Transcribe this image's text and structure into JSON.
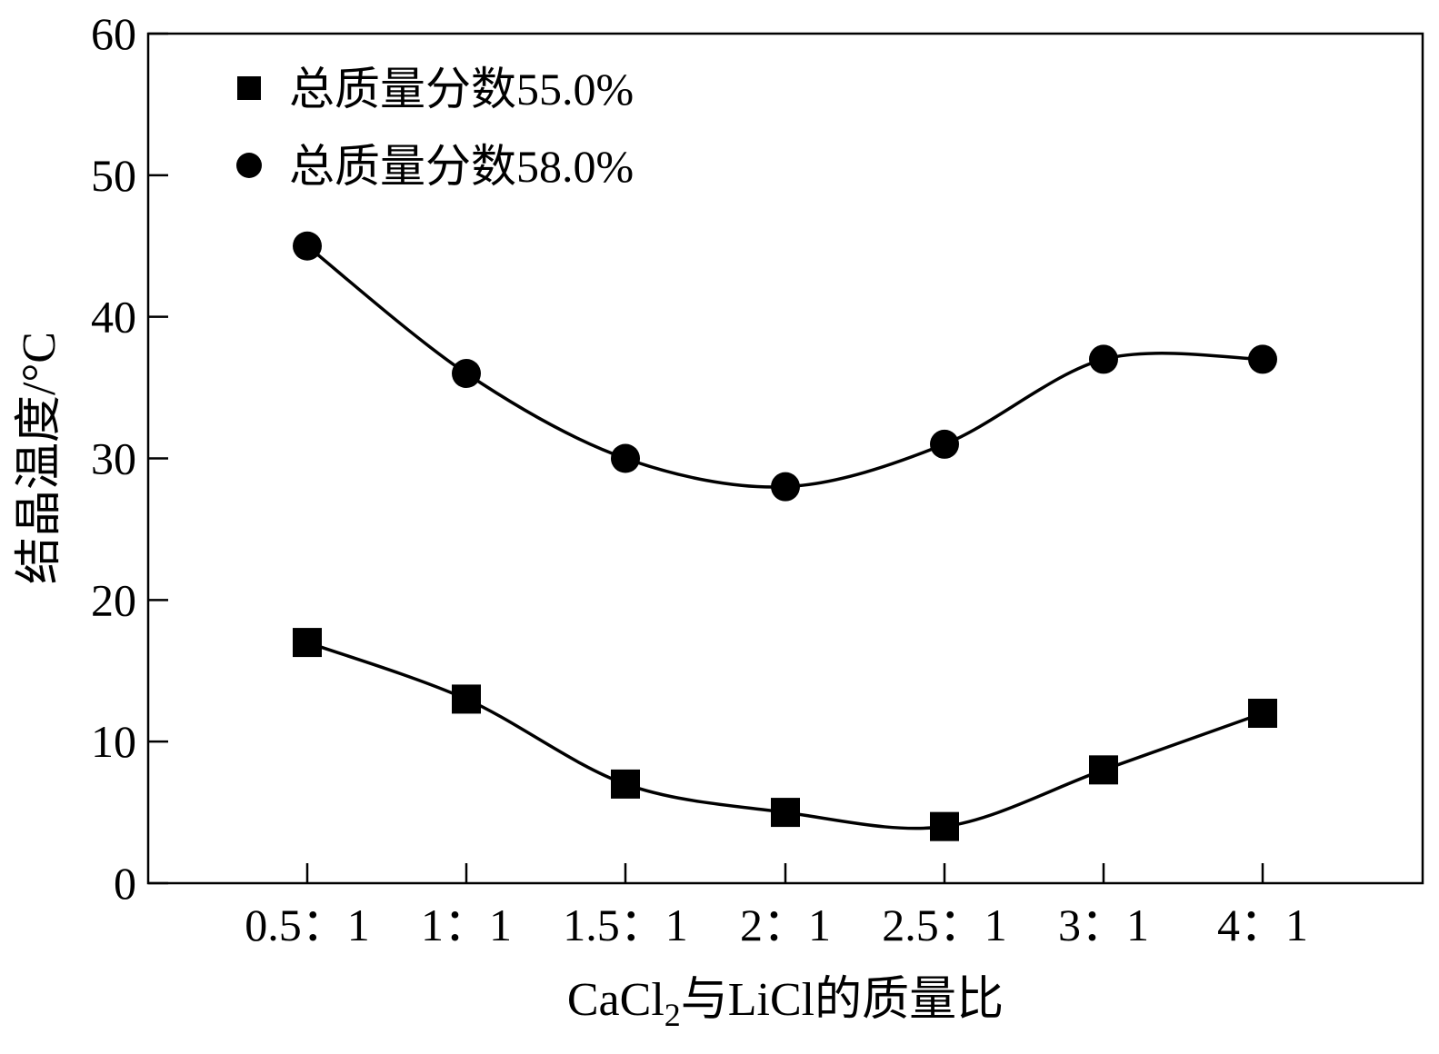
{
  "chart_data": {
    "type": "line",
    "categories": [
      "0.5：1",
      "1：1",
      "1.5：1",
      "2：1",
      "2.5：1",
      "3：1",
      "4：1"
    ],
    "series": [
      {
        "name": "总质量分数55.0%",
        "marker": "square",
        "values": [
          17,
          13,
          7,
          5,
          4,
          8,
          12
        ]
      },
      {
        "name": "总质量分数58.0%",
        "marker": "circle",
        "values": [
          45,
          36,
          30,
          28,
          31,
          37,
          37
        ]
      }
    ],
    "y_ticks": [
      "0",
      "10",
      "20",
      "30",
      "40",
      "50",
      "60"
    ],
    "ylim": [
      0,
      60
    ],
    "xlabel": {
      "main": "CaCl",
      "sub": "2",
      "rest": "与LiCl的质量比"
    },
    "ylabel": "结晶温度/°C",
    "legend": "top-left",
    "grid": false,
    "line_color": "#000000"
  }
}
